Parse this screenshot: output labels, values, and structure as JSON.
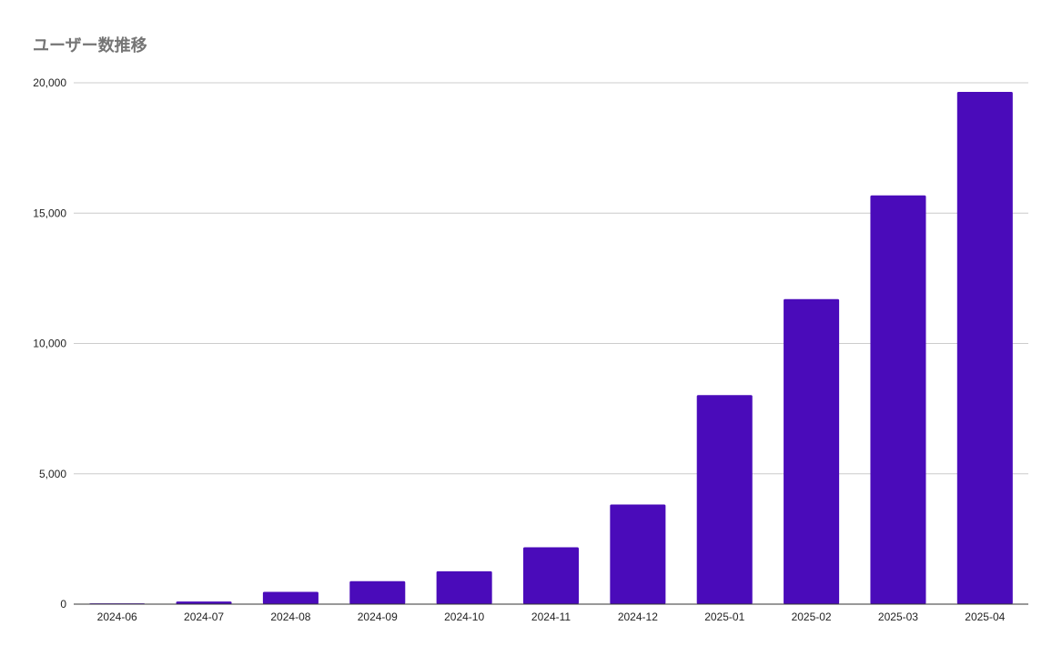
{
  "chart_data": {
    "type": "bar",
    "title": "ユーザー数推移",
    "xlabel": "",
    "ylabel": "",
    "categories": [
      "2024-06",
      "2024-07",
      "2024-08",
      "2024-09",
      "2024-10",
      "2024-11",
      "2024-12",
      "2025-01",
      "2025-02",
      "2025-03",
      "2025-04"
    ],
    "values": [
      30,
      100,
      470,
      880,
      1260,
      2180,
      3820,
      8020,
      11700,
      15680,
      19650
    ],
    "ylim": [
      0,
      20000
    ],
    "yticks": [
      0,
      5000,
      10000,
      15000,
      20000
    ],
    "ytick_labels": [
      "0",
      "5,000",
      "10,000",
      "15,000",
      "20,000"
    ],
    "grid": true,
    "legend": "none",
    "colors": {
      "bar": "#4a0bba",
      "grid": "#cccccc",
      "axis": "#333333"
    }
  }
}
